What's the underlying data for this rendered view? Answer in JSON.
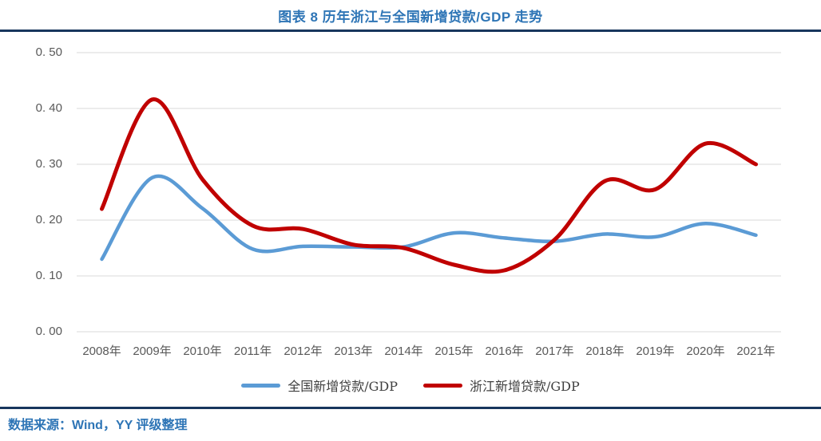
{
  "figure": {
    "title": "图表 8 历年浙江与全国新增贷款/GDP 走势"
  },
  "footer": {
    "source": "数据来源：Wind，YY 评级整理"
  },
  "colors": {
    "title_blue": "#2E75B6",
    "divider_navy": "#17365D",
    "axis_text_gray": "#595959",
    "gridline_gray": "#D9D9D9",
    "national_line_blue": "#5B9BD5",
    "zhejiang_line_red": "#C00000"
  },
  "chart_data": {
    "type": "line",
    "title": "图表 8 历年浙江与全国新增贷款/GDP 走势",
    "xlabel": "",
    "ylabel": "",
    "categories": [
      "2008年",
      "2009年",
      "2010年",
      "2011年",
      "2012年",
      "2013年",
      "2014年",
      "2015年",
      "2016年",
      "2017年",
      "2018年",
      "2019年",
      "2020年",
      "2021年"
    ],
    "series": [
      {
        "name": "全国新增贷款/GDP",
        "color": "#5B9BD5",
        "values": [
          0.13,
          0.276,
          0.221,
          0.148,
          0.153,
          0.152,
          0.152,
          0.177,
          0.168,
          0.162,
          0.175,
          0.17,
          0.194,
          0.173
        ]
      },
      {
        "name": "浙江新增贷款/GDP",
        "color": "#C00000",
        "values": [
          0.22,
          0.416,
          0.273,
          0.19,
          0.184,
          0.156,
          0.15,
          0.12,
          0.11,
          0.165,
          0.27,
          0.255,
          0.337,
          0.3
        ]
      }
    ],
    "y_ticks": [
      0,
      0.1,
      0.2,
      0.3,
      0.4,
      0.5
    ],
    "y_tick_labels": [
      "0. 00",
      "0. 10",
      "0. 20",
      "0. 30",
      "0. 40",
      "0. 50"
    ],
    "ylim": [
      0,
      0.5
    ],
    "grid": true,
    "smooth": true,
    "legend_position": "bottom"
  }
}
